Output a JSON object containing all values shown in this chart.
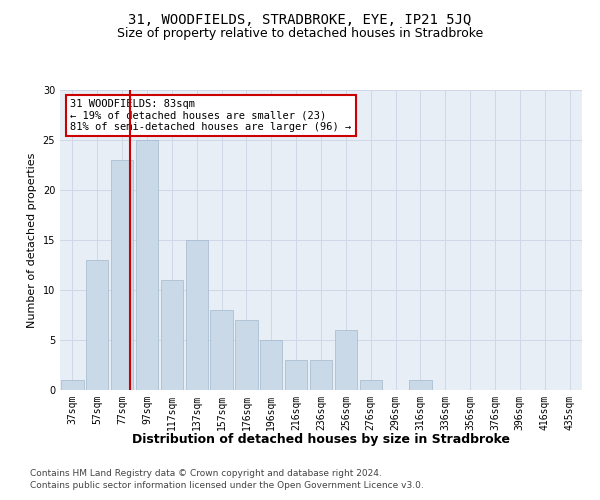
{
  "title": "31, WOODFIELDS, STRADBROKE, EYE, IP21 5JQ",
  "subtitle": "Size of property relative to detached houses in Stradbroke",
  "xlabel": "Distribution of detached houses by size in Stradbroke",
  "ylabel": "Number of detached properties",
  "categories": [
    "37sqm",
    "57sqm",
    "77sqm",
    "97sqm",
    "117sqm",
    "137sqm",
    "157sqm",
    "176sqm",
    "196sqm",
    "216sqm",
    "236sqm",
    "256sqm",
    "276sqm",
    "296sqm",
    "316sqm",
    "336sqm",
    "356sqm",
    "376sqm",
    "396sqm",
    "416sqm",
    "435sqm"
  ],
  "values": [
    1,
    13,
    23,
    25,
    11,
    15,
    8,
    7,
    5,
    3,
    3,
    6,
    1,
    0,
    1,
    0,
    0,
    0,
    0,
    0,
    0
  ],
  "bar_color": "#c9d9e8",
  "bar_edgecolor": "#a0b8cc",
  "redline_x": 2.3,
  "annotation_text": "31 WOODFIELDS: 83sqm\n← 19% of detached houses are smaller (23)\n81% of semi-detached houses are larger (96) →",
  "annotation_box_color": "#ffffff",
  "annotation_box_edgecolor": "#cc0000",
  "redline_color": "#cc0000",
  "ylim": [
    0,
    30
  ],
  "yticks": [
    0,
    5,
    10,
    15,
    20,
    25,
    30
  ],
  "grid_color": "#d0d8e8",
  "background_color": "#e8eef5",
  "footer1": "Contains HM Land Registry data © Crown copyright and database right 2024.",
  "footer2": "Contains public sector information licensed under the Open Government Licence v3.0.",
  "title_fontsize": 10,
  "subtitle_fontsize": 9,
  "xlabel_fontsize": 9,
  "ylabel_fontsize": 8,
  "tick_fontsize": 7,
  "annotation_fontsize": 7.5,
  "footer_fontsize": 6.5
}
